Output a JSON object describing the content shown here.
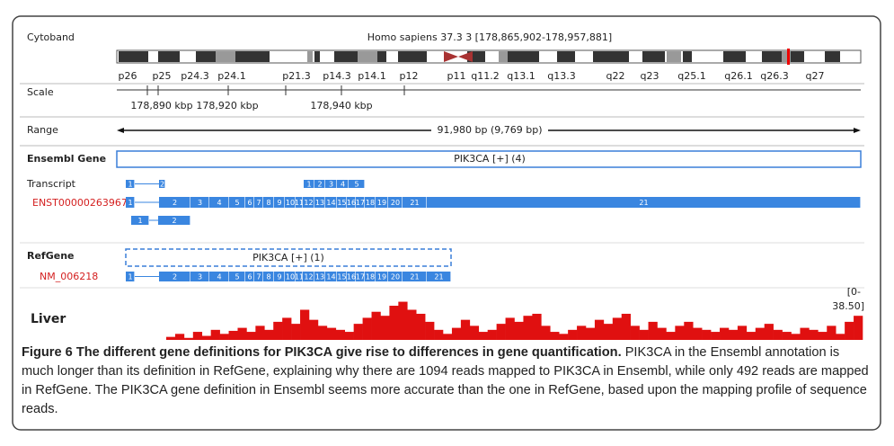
{
  "cytoband": {
    "label": "Cytoband",
    "title": "Homo sapiens 37.3 3 [178,865,902-178,957,881]",
    "bands": [
      "p26",
      "p25",
      "p24.3",
      "p24.1",
      "p21.3",
      "p14.3",
      "p14.1",
      "p12",
      "p11",
      "q11.2",
      "q13.1",
      "q13.3",
      "q22",
      "q23",
      "q25.1",
      "q26.1",
      "q26.3",
      "q27"
    ]
  },
  "scale": {
    "label": "Scale",
    "ticks": [
      "178,890 kbp",
      "178,920 kbp",
      "178,940 kbp"
    ]
  },
  "range": {
    "label": "Range",
    "text": "91,980 bp (9,769 bp)"
  },
  "ensembl_gene": {
    "label": "Ensembl Gene",
    "gene": "PIK3CA [+] (4)",
    "transcript_label": "Transcript",
    "transcript_id": "ENST00000263967",
    "rows": [
      [
        "1",
        "2",
        "1",
        "2",
        "3",
        "4",
        "5"
      ],
      [
        "1",
        "2",
        "3",
        "4",
        "5",
        "6",
        "7",
        "8",
        "9",
        "10",
        "11",
        "12",
        "13",
        "14",
        "15",
        "16",
        "17",
        "18",
        "19",
        "20",
        "21",
        "21"
      ],
      [
        "1",
        "2"
      ]
    ]
  },
  "refgene": {
    "label": "RefGene",
    "gene": "PIK3CA [+] (1)",
    "transcript_id": "NM_006218",
    "exons": [
      "1",
      "2",
      "3",
      "4",
      "5",
      "6",
      "7",
      "8",
      "9",
      "10",
      "11",
      "12",
      "13",
      "14",
      "15",
      "16",
      "17",
      "18",
      "19",
      "20",
      "21",
      "21"
    ]
  },
  "liver": {
    "label": "Liver",
    "range_labels": [
      "[0-",
      "38.50]"
    ],
    "ylim": [
      0,
      38.5
    ],
    "coverage": [
      3,
      6,
      2,
      8,
      4,
      10,
      6,
      9,
      12,
      8,
      14,
      10,
      18,
      22,
      16,
      30,
      20,
      14,
      12,
      10,
      8,
      16,
      22,
      28,
      24,
      34,
      38,
      30,
      26,
      18,
      10,
      6,
      12,
      20,
      14,
      8,
      10,
      16,
      22,
      18,
      24,
      26,
      14,
      8,
      6,
      10,
      14,
      12,
      20,
      16,
      22,
      26,
      14,
      10,
      18,
      12,
      8,
      14,
      18,
      12,
      10,
      8,
      12,
      10,
      14,
      8,
      12,
      16,
      10,
      8,
      6,
      12,
      10,
      8,
      14,
      6,
      18,
      24
    ]
  },
  "caption": {
    "title": "Figure 6 The different gene definitions for PIK3CA give rise to differences in gene quantification.",
    "text": "PIK3CA in the Ensembl annotation is much longer than its definition in RefGene, explaining why there are 1094 reads mapped to PIK3CA in Ensembl, while only 492 reads are mapped in RefGene. The PIK3CA gene definition in Ensembl seems more accurate than the one in RefGene, based upon the mapping profile of sequence reads."
  }
}
